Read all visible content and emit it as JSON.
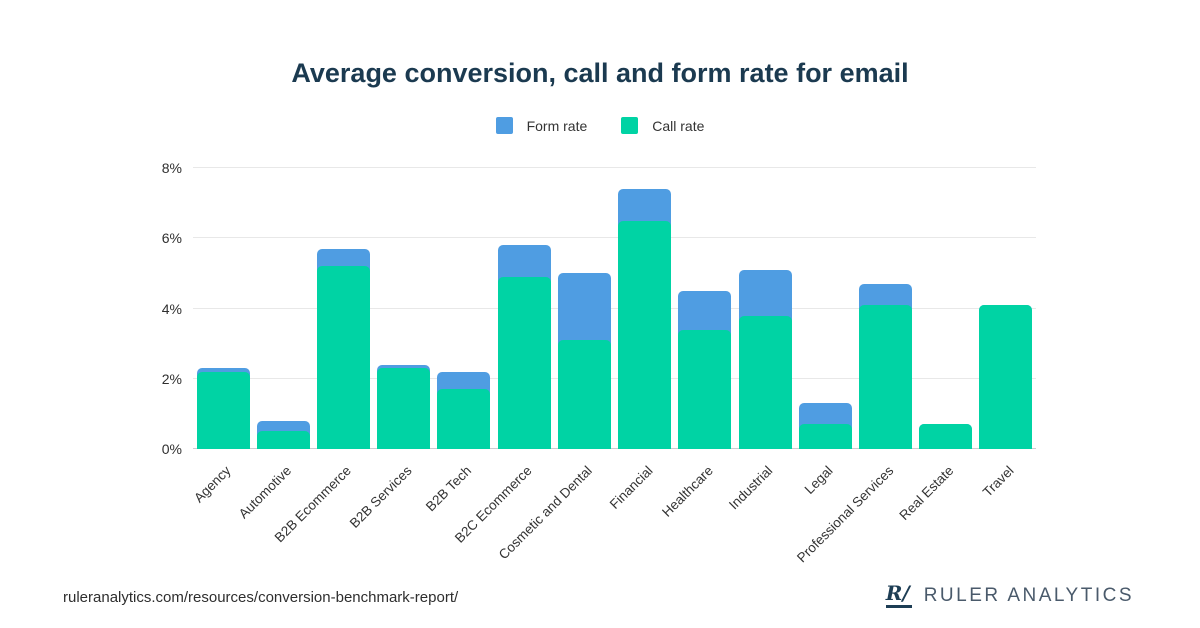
{
  "title": "Average conversion, call and form rate for email",
  "legend": [
    {
      "label": "Form rate",
      "color": "#4f9de2",
      "icon": "form-rate-swatch"
    },
    {
      "label": "Call rate",
      "color": "#00d3a4",
      "icon": "call-rate-swatch"
    }
  ],
  "chart_data": {
    "type": "bar",
    "stacked": true,
    "title": "Average conversion, call and form rate for email",
    "xlabel": "",
    "ylabel": "",
    "ylim": [
      0,
      8
    ],
    "y_ticks": [
      "0%",
      "2%",
      "4%",
      "6%",
      "8%"
    ],
    "grid": true,
    "legend_position": "top",
    "categories": [
      "Agency",
      "Automotive",
      "B2B Ecommerce",
      "B2B Services",
      "B2B Tech",
      "B2C Ecommerce",
      "Cosmetic and Dental",
      "Financial",
      "Healthcare",
      "Industrial",
      "Legal",
      "Professional Services",
      "Real Estate",
      "Travel"
    ],
    "series": [
      {
        "name": "Call rate",
        "color": "#00d3a4",
        "values": [
          2.2,
          0.5,
          5.2,
          2.3,
          1.7,
          4.9,
          3.1,
          6.5,
          3.4,
          3.8,
          0.7,
          4.1,
          0.7,
          4.1
        ]
      },
      {
        "name": "Form rate",
        "color": "#4f9de2",
        "values": [
          0.1,
          0.3,
          0.5,
          0.1,
          0.5,
          0.9,
          1.9,
          0.9,
          1.1,
          1.3,
          0.6,
          0.6,
          0.0,
          0.0
        ]
      }
    ],
    "totals": [
      2.3,
      0.8,
      5.7,
      2.4,
      2.2,
      5.8,
      5.0,
      7.4,
      4.5,
      5.1,
      1.3,
      4.7,
      0.7,
      4.1
    ]
  },
  "footer": {
    "url": "ruleranalytics.com/resources/conversion-benchmark-report/",
    "logo_mark": "R/",
    "brand": "RULER ANALYTICS"
  }
}
